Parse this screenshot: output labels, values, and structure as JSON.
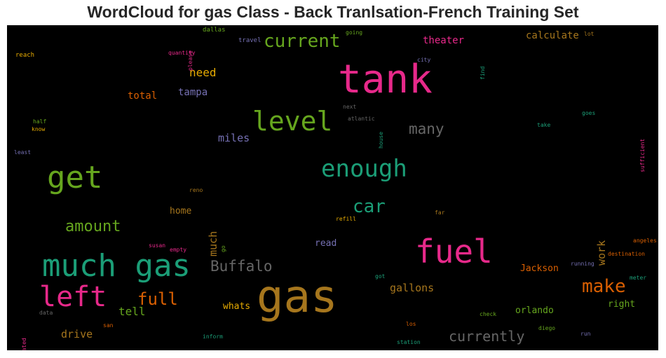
{
  "title": "WordCloud for gas Class - Back Tranlsation-French Training Set",
  "palette": {
    "pink": "#e7298a",
    "green": "#1b9e77",
    "lime": "#66a61e",
    "gold": "#e6ab02",
    "orange": "#d95f02",
    "purple": "#7570b3",
    "brown": "#a6761d",
    "gray": "#666666"
  },
  "words": [
    "gas",
    "tank",
    "much gas",
    "fuel",
    "get",
    "level",
    "left",
    "enough",
    "make",
    "current",
    "car",
    "amount",
    "full",
    "Buffalo",
    "many",
    "currently",
    "miles",
    "need",
    "theater",
    "calculate",
    "tampa",
    "total",
    "gallons",
    "tell",
    "drive",
    "much",
    "work",
    "whats",
    "orlando",
    "Jackson",
    "right",
    "read",
    "home",
    "dallas",
    "travel",
    "going",
    "reach",
    "quantity",
    "please",
    "city",
    "find",
    "lot",
    "half",
    "know",
    "next",
    "atlantic",
    "house",
    "take",
    "goes",
    "sufficient",
    "least",
    "reno",
    "refill",
    "far",
    "go",
    "susan",
    "empty",
    "angeles",
    "destination",
    "running",
    "got",
    "meter",
    "data",
    "san",
    "check",
    "los",
    "diego",
    "run",
    "located",
    "inform",
    "station"
  ]
}
